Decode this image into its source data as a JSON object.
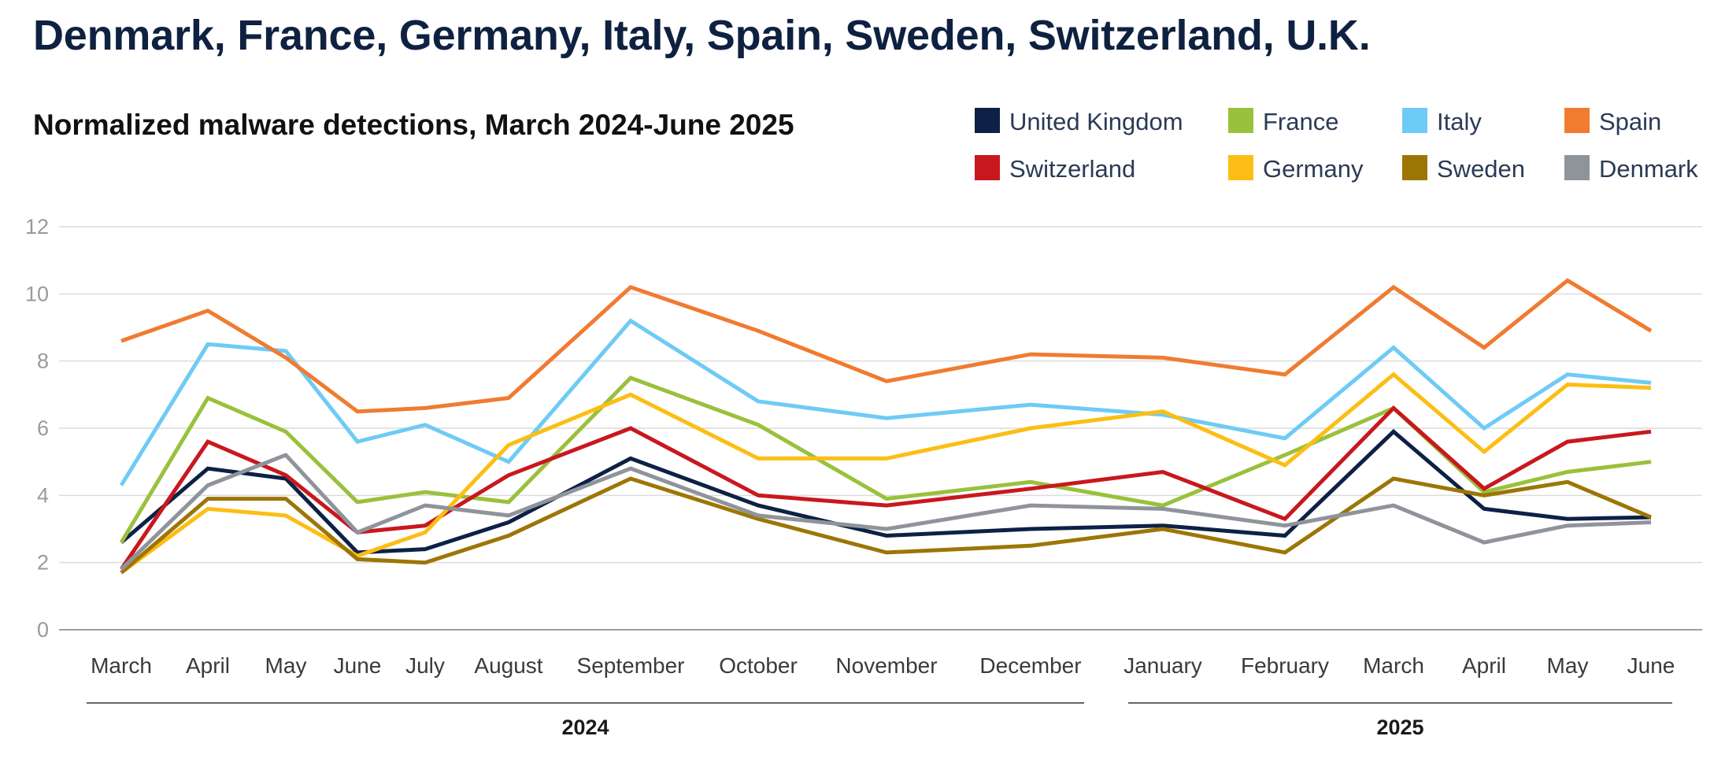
{
  "header": {
    "title": "Denmark, France, Germany, Italy, Spain, Sweden, Switzerland, U.K."
  },
  "chart_data": {
    "type": "line",
    "title": "Normalized malware detections, March 2024-June 2025",
    "xlabel": "",
    "ylabel": "",
    "ylim": [
      0,
      12
    ],
    "yticks": [
      0,
      2,
      4,
      6,
      8,
      10,
      12
    ],
    "grid": true,
    "legend_position": "top-right",
    "categories": [
      "March",
      "April",
      "May",
      "June",
      "July",
      "August",
      "September",
      "October",
      "November",
      "December",
      "January",
      "February",
      "March",
      "April",
      "May",
      "June"
    ],
    "year_groups": [
      {
        "label": "2024",
        "start": 0,
        "end": 9
      },
      {
        "label": "2025",
        "start": 10,
        "end": 15
      }
    ],
    "series": [
      {
        "name": "United Kingdom",
        "color": "#0d2146",
        "values": [
          2.6,
          4.8,
          4.5,
          2.3,
          2.4,
          3.2,
          5.1,
          3.7,
          2.8,
          3.0,
          3.1,
          2.8,
          5.9,
          3.6,
          3.3,
          3.35
        ]
      },
      {
        "name": "France",
        "color": "#99c13c",
        "values": [
          2.6,
          6.9,
          5.9,
          3.8,
          4.1,
          3.8,
          7.5,
          6.1,
          3.9,
          4.4,
          3.7,
          5.2,
          6.6,
          4.1,
          4.7,
          5.0
        ]
      },
      {
        "name": "Italy",
        "color": "#6ecbf5",
        "values": [
          4.3,
          8.5,
          8.3,
          5.6,
          6.1,
          5.0,
          9.2,
          6.8,
          6.3,
          6.7,
          6.4,
          5.7,
          8.4,
          6.0,
          7.6,
          7.35
        ]
      },
      {
        "name": "Spain",
        "color": "#f07b31",
        "values": [
          8.6,
          9.5,
          8.1,
          6.5,
          6.6,
          6.9,
          10.2,
          8.9,
          7.4,
          8.2,
          8.1,
          7.6,
          10.2,
          8.4,
          10.4,
          8.9
        ]
      },
      {
        "name": "Switzerland",
        "color": "#c8181e",
        "values": [
          1.8,
          5.6,
          4.6,
          2.9,
          3.1,
          4.6,
          6.0,
          4.0,
          3.7,
          4.2,
          4.7,
          3.3,
          6.6,
          4.2,
          5.6,
          5.9
        ]
      },
      {
        "name": "Germany",
        "color": "#fcbe14",
        "values": [
          1.7,
          3.6,
          3.4,
          2.2,
          2.9,
          5.5,
          7.0,
          5.1,
          5.1,
          6.0,
          6.5,
          4.9,
          7.6,
          5.3,
          7.3,
          7.2
        ]
      },
      {
        "name": "Sweden",
        "color": "#9c7605",
        "values": [
          1.7,
          3.9,
          3.9,
          2.1,
          2.0,
          2.8,
          4.5,
          3.3,
          2.3,
          2.5,
          3.0,
          2.3,
          4.5,
          4.0,
          4.4,
          3.35
        ]
      },
      {
        "name": "Denmark",
        "color": "#8f949b",
        "values": [
          1.8,
          4.3,
          5.2,
          2.9,
          3.7,
          3.4,
          4.8,
          3.4,
          3.0,
          3.7,
          3.6,
          3.1,
          3.7,
          2.6,
          3.1,
          3.2
        ]
      }
    ]
  }
}
